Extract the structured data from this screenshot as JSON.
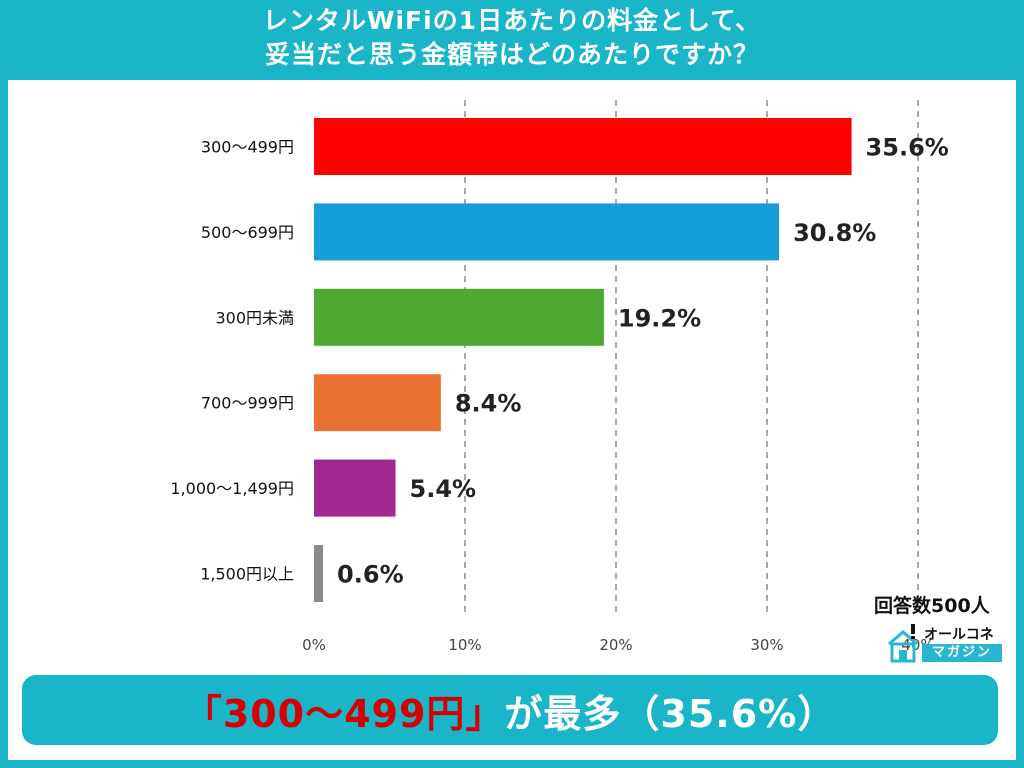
{
  "header": {
    "title_line1": "レンタルWiFiの1日あたりの料金として、",
    "title_line2": "妥当だと思う金額帯はどのあたりですか？"
  },
  "respondents": "回答数500人",
  "logo": {
    "top_text": "オールコネクト",
    "badge_text": "マガジン",
    "icon": "house-icon"
  },
  "footer": {
    "highlight": "「300〜499円」",
    "rest": "が最多（35.6%）"
  },
  "colors": {
    "background": "#1ab5c8",
    "footer_highlight": "#d60000"
  },
  "chart_data": {
    "type": "bar",
    "orientation": "horizontal",
    "categories": [
      "300〜499円",
      "500〜699円",
      "300円未満",
      "700〜999円",
      "1,000〜1,499円",
      "1,500円以上"
    ],
    "values": [
      35.6,
      30.8,
      19.2,
      8.4,
      5.4,
      0.6
    ],
    "value_labels": [
      "35.6%",
      "30.8%",
      "19.2%",
      "8.4%",
      "5.4%",
      "0.6%"
    ],
    "colors": [
      "#ff0000",
      "#169ed9",
      "#4ea832",
      "#ea7232",
      "#a0288f",
      "#8a8a8a"
    ],
    "xlim": [
      0,
      40
    ],
    "xticks": [
      0,
      10,
      20,
      30,
      40
    ],
    "xtick_labels": [
      "0%",
      "10%",
      "20%",
      "30%",
      "40%"
    ],
    "grid": true
  }
}
